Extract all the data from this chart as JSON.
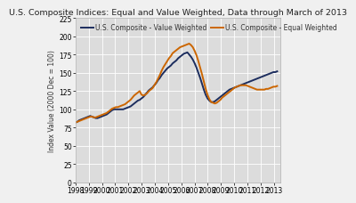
{
  "title": "U.S. Composite Indices: Equal and Value Weighted, Data through March of 2013",
  "ylabel": "Index Value (2000 Dec = 100)",
  "fig_bg_color": "#f0f0f0",
  "plot_bg_color": "#dcdcdc",
  "value_weighted_color": "#1c2d5e",
  "equal_weighted_color": "#cc6600",
  "value_weighted_label": "U.S. Composite - Value Weighted",
  "equal_weighted_label": "U.S. Composite - Equal Weighted",
  "ylim": [
    0,
    225
  ],
  "yticks": [
    0,
    25,
    50,
    75,
    100,
    125,
    150,
    175,
    200,
    225
  ],
  "xtick_years": [
    "1998",
    "1999",
    "2000",
    "2001",
    "2002",
    "2003",
    "2004",
    "2005",
    "2006",
    "2007",
    "2008",
    "2009",
    "2010",
    "2011",
    "2012",
    "2013"
  ],
  "value_weighted": [
    82,
    83,
    85,
    86,
    87,
    88,
    89,
    90,
    91,
    90,
    89,
    88,
    88,
    89,
    90,
    91,
    92,
    93,
    95,
    97,
    99,
    100,
    100,
    100,
    100,
    100,
    100,
    101,
    102,
    103,
    104,
    106,
    108,
    110,
    112,
    113,
    115,
    117,
    120,
    123,
    126,
    128,
    130,
    133,
    136,
    140,
    143,
    147,
    150,
    153,
    156,
    158,
    160,
    163,
    165,
    167,
    170,
    172,
    174,
    176,
    177,
    178,
    175,
    172,
    168,
    163,
    157,
    150,
    143,
    135,
    127,
    120,
    115,
    112,
    110,
    110,
    111,
    113,
    115,
    117,
    119,
    121,
    123,
    125,
    127,
    128,
    129,
    130,
    131,
    132,
    133,
    134,
    135,
    136,
    137,
    138,
    139,
    140,
    141,
    142,
    143,
    144,
    145,
    146,
    147,
    148,
    149,
    150,
    151,
    151,
    152
  ],
  "equal_weighted": [
    82,
    83,
    84,
    85,
    86,
    87,
    88,
    89,
    90,
    90,
    89,
    89,
    90,
    91,
    92,
    93,
    94,
    95,
    97,
    99,
    101,
    102,
    103,
    103,
    104,
    105,
    106,
    107,
    109,
    111,
    113,
    116,
    119,
    121,
    123,
    125,
    120,
    119,
    120,
    122,
    125,
    127,
    129,
    133,
    137,
    142,
    147,
    153,
    158,
    162,
    166,
    170,
    173,
    177,
    179,
    181,
    183,
    185,
    186,
    187,
    188,
    189,
    190,
    188,
    185,
    180,
    174,
    166,
    157,
    148,
    138,
    128,
    120,
    114,
    110,
    109,
    108,
    109,
    111,
    113,
    116,
    118,
    120,
    122,
    124,
    126,
    128,
    130,
    131,
    132,
    133,
    133,
    133,
    133,
    132,
    131,
    130,
    129,
    128,
    127,
    127,
    127,
    127,
    127,
    128,
    128,
    129,
    130,
    131,
    131,
    132
  ],
  "title_fontsize": 6.8,
  "label_fontsize": 5.5,
  "tick_fontsize": 5.5,
  "legend_fontsize": 5.5,
  "line_width": 1.4
}
